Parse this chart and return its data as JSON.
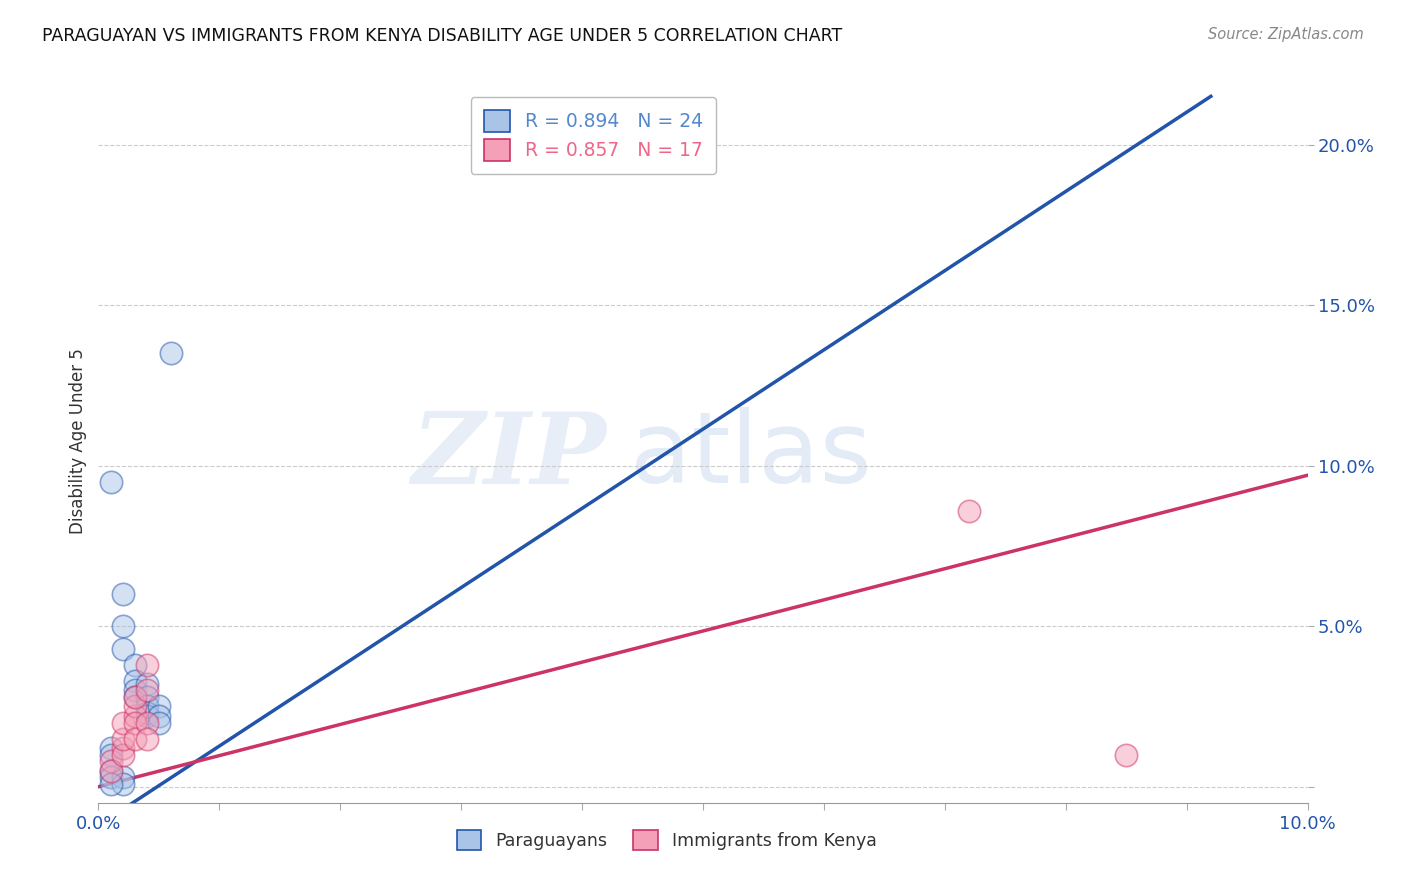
{
  "title": "PARAGUAYAN VS IMMIGRANTS FROM KENYA DISABILITY AGE UNDER 5 CORRELATION CHART",
  "source": "Source: ZipAtlas.com",
  "ylabel": "Disability Age Under 5",
  "xlim": [
    0.0,
    0.1
  ],
  "ylim": [
    -0.005,
    0.22
  ],
  "x_tick_labels": [
    "0.0%",
    "",
    "",
    "",
    "",
    "",
    "",
    "",
    "",
    "",
    "10.0%"
  ],
  "x_tick_values": [
    0.0,
    0.01,
    0.02,
    0.03,
    0.04,
    0.05,
    0.06,
    0.07,
    0.08,
    0.09,
    0.1
  ],
  "y_tick_labels": [
    "",
    "5.0%",
    "10.0%",
    "15.0%",
    "20.0%"
  ],
  "y_tick_values": [
    0.0,
    0.05,
    0.1,
    0.15,
    0.2
  ],
  "legend_entries": [
    {
      "label": "R = 0.894   N = 24",
      "color": "#5588cc"
    },
    {
      "label": "R = 0.857   N = 17",
      "color": "#ee6688"
    }
  ],
  "paraguayan_scatter": [
    [
      0.001,
      0.095
    ],
    [
      0.002,
      0.06
    ],
    [
      0.002,
      0.05
    ],
    [
      0.002,
      0.043
    ],
    [
      0.003,
      0.038
    ],
    [
      0.003,
      0.033
    ],
    [
      0.003,
      0.03
    ],
    [
      0.003,
      0.028
    ],
    [
      0.004,
      0.032
    ],
    [
      0.004,
      0.028
    ],
    [
      0.004,
      0.025
    ],
    [
      0.004,
      0.023
    ],
    [
      0.004,
      0.022
    ],
    [
      0.005,
      0.025
    ],
    [
      0.005,
      0.022
    ],
    [
      0.005,
      0.02
    ],
    [
      0.006,
      0.135
    ],
    [
      0.001,
      0.012
    ],
    [
      0.001,
      0.01
    ],
    [
      0.001,
      0.005
    ],
    [
      0.001,
      0.003
    ],
    [
      0.002,
      0.003
    ],
    [
      0.002,
      0.001
    ],
    [
      0.001,
      0.001
    ]
  ],
  "kenya_scatter": [
    [
      0.001,
      0.008
    ],
    [
      0.001,
      0.005
    ],
    [
      0.002,
      0.012
    ],
    [
      0.002,
      0.01
    ],
    [
      0.002,
      0.015
    ],
    [
      0.002,
      0.02
    ],
    [
      0.003,
      0.022
    ],
    [
      0.003,
      0.025
    ],
    [
      0.003,
      0.028
    ],
    [
      0.003,
      0.02
    ],
    [
      0.003,
      0.015
    ],
    [
      0.004,
      0.03
    ],
    [
      0.004,
      0.038
    ],
    [
      0.004,
      0.02
    ],
    [
      0.004,
      0.015
    ],
    [
      0.072,
      0.086
    ],
    [
      0.085,
      0.01
    ]
  ],
  "blue_line_x": [
    0.0,
    0.092
  ],
  "blue_line_y": [
    -0.012,
    0.215
  ],
  "pink_line_x": [
    0.0,
    0.1
  ],
  "pink_line_y": [
    0.0,
    0.097
  ],
  "scatter_color_blue": "#aac4e8",
  "scatter_color_pink": "#f4a0b8",
  "line_color_blue": "#2255aa",
  "line_color_pink": "#cc3366",
  "watermark_zip": "ZIP",
  "watermark_atlas": "atlas",
  "background_color": "#ffffff",
  "grid_color": "#cccccc",
  "bottom_legend": [
    "Paraguayans",
    "Immigrants from Kenya"
  ]
}
